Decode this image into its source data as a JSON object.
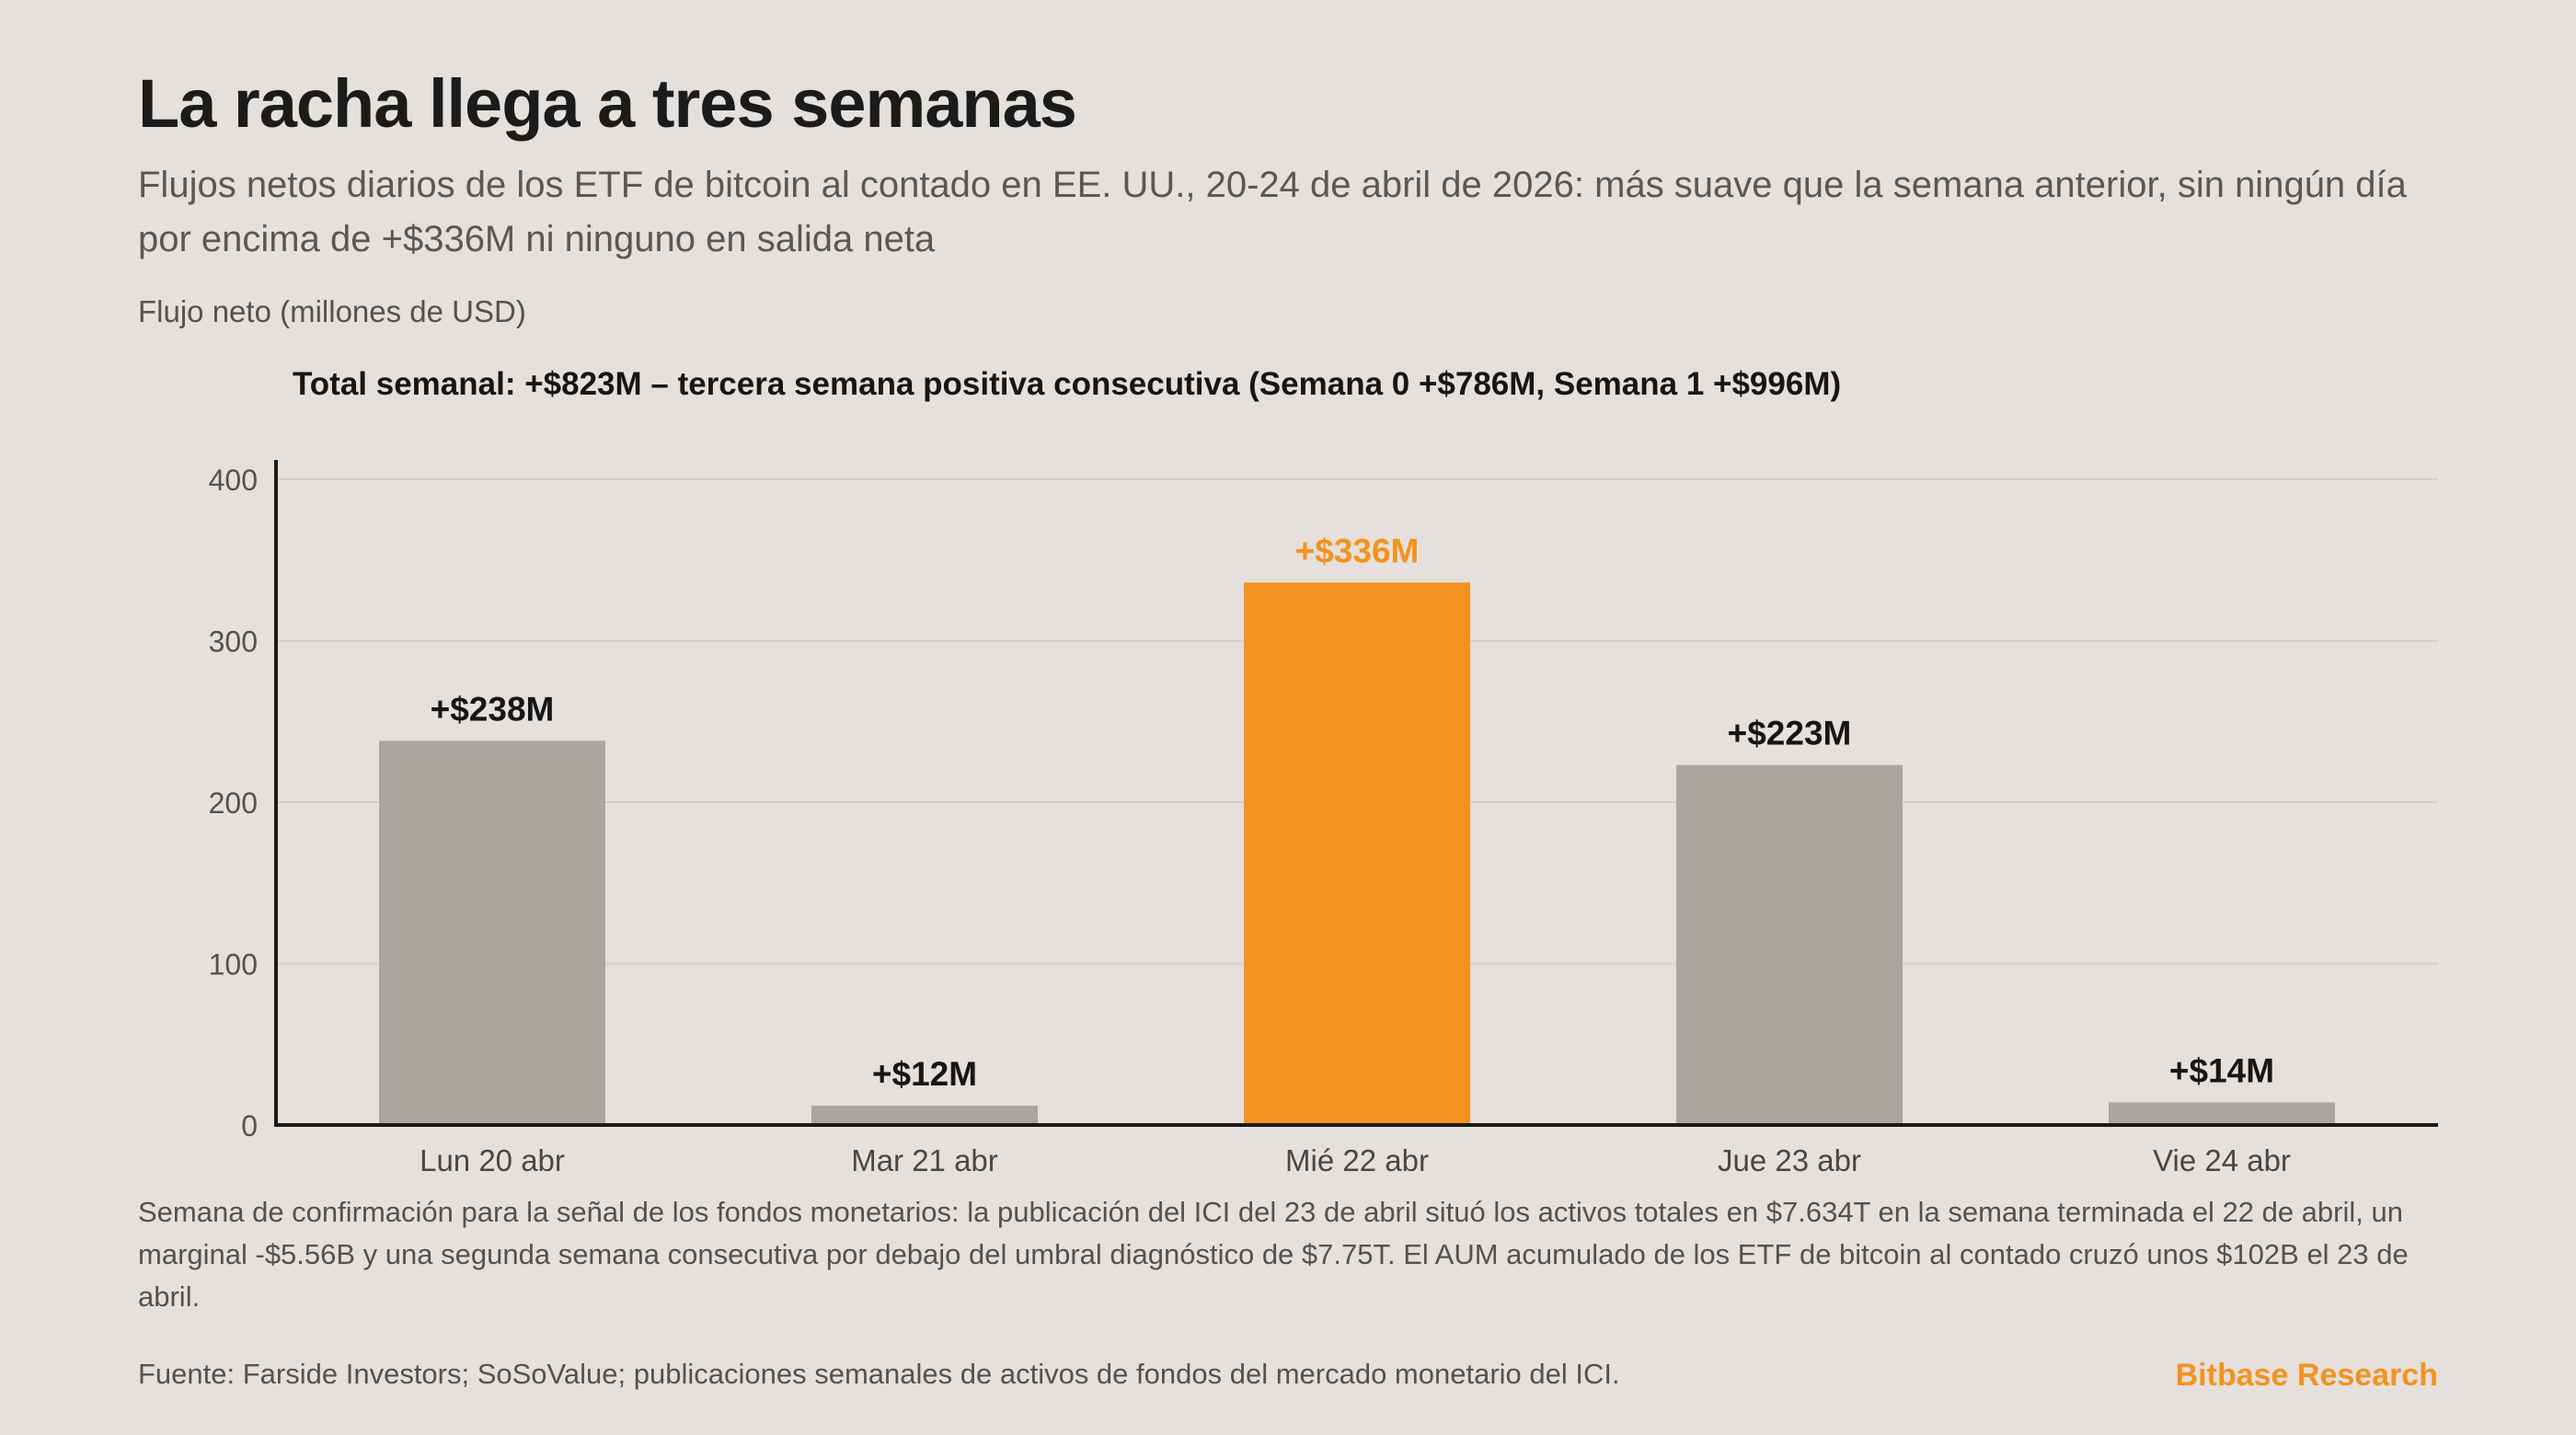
{
  "title": "La racha llega a tres semanas",
  "subtitle": "Flujos netos diarios de los ETF de bitcoin al contado en EE. UU., 20-24 de abril de 2026: más suave que la semana anterior, sin ningún día por encima de +$336M ni ninguno en salida neta",
  "colors": {
    "background": "#e5e0db",
    "bar_default": "#aaa59f",
    "bar_highlight": "#f39220",
    "label_default": "#161616",
    "label_highlight": "#f39220",
    "grid": "#d3cec8",
    "axis": "#1a1a1a"
  },
  "chart_data": {
    "type": "bar",
    "title": "Total semanal: +$823M – tercera semana positiva consecutiva (Semana 0 +$786M, Semana 1 +$996M)",
    "ylabel": "Flujo neto (millones de USD)",
    "xlabel": "",
    "categories": [
      "Lun 20 abr",
      "Mar 21 abr",
      "Mié 22 abr",
      "Jue 23 abr",
      "Vie 24 abr"
    ],
    "values": [
      238,
      12,
      336,
      223,
      14
    ],
    "data_labels": [
      "+$238M",
      "+$12M",
      "+$336M",
      "+$223M",
      "+$14M"
    ],
    "highlight_index": 2,
    "ylim": [
      0,
      400
    ],
    "yticks": [
      0,
      100,
      200,
      300,
      400
    ],
    "ytick_labels": [
      "0",
      "100",
      "200",
      "300",
      "400"
    ],
    "grid": true
  },
  "note": "Semana de confirmación para la señal de los fondos monetarios: la publicación del ICI del 23 de abril situó los activos totales en $7.634T en la semana terminada el 22 de abril, un marginal -$5.56B y una segunda semana consecutiva por debajo del umbral diagnóstico de $7.75T. El AUM acumulado de los ETF de bitcoin al contado cruzó unos $102B el 23 de abril.",
  "source": "Fuente: Farside Investors; SoSoValue; publicaciones semanales de activos de fondos del mercado monetario del ICI.",
  "brand": "Bitbase Research"
}
